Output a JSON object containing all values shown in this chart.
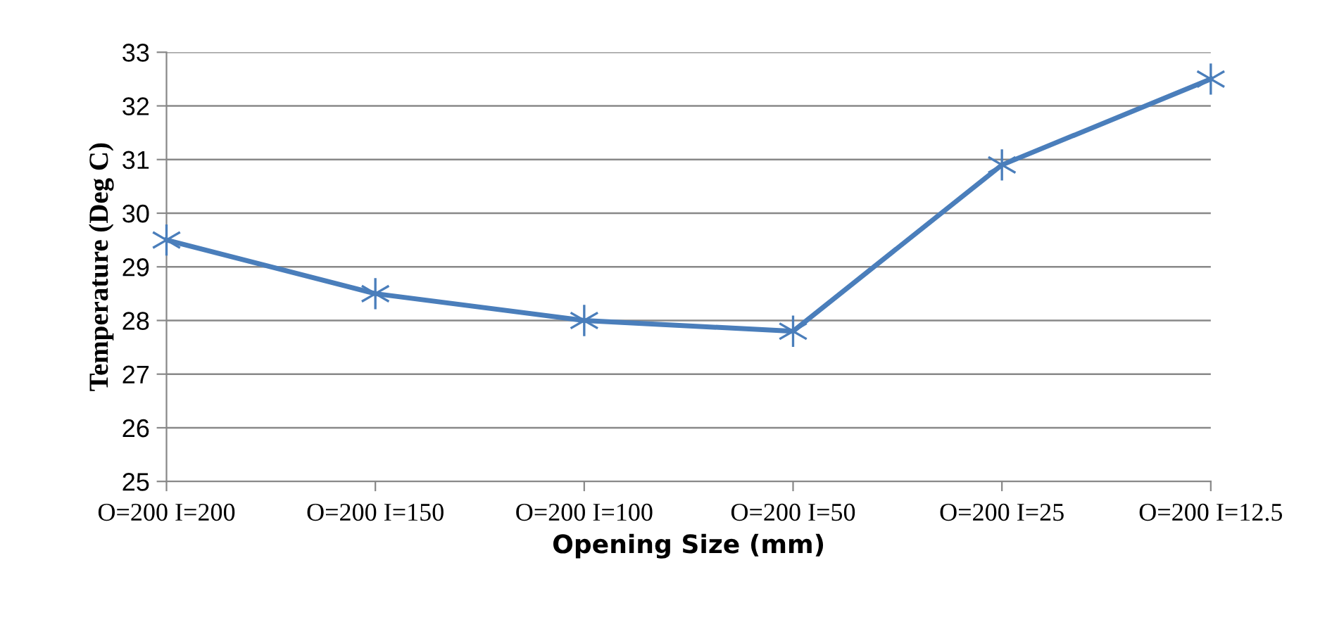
{
  "chart_data": {
    "type": "line",
    "xlabel": "Opening Size (mm)",
    "ylabel": "Temperature (Deg C)",
    "categories": [
      "O=200 I=200",
      "O=200 I=150",
      "O=200 I=100",
      "O=200 I=50",
      "O=200 I=25",
      "O=200 I=12.5"
    ],
    "series": [
      {
        "color": "#4a7ebb",
        "values": [
          29.5,
          28.5,
          28.0,
          27.8,
          30.9,
          32.5
        ]
      }
    ],
    "ylim": [
      25,
      33
    ],
    "yticks": [
      25,
      26,
      27,
      28,
      29,
      30,
      31,
      32,
      33
    ],
    "grid": "y",
    "marker": "cross",
    "line_style": "solid"
  }
}
